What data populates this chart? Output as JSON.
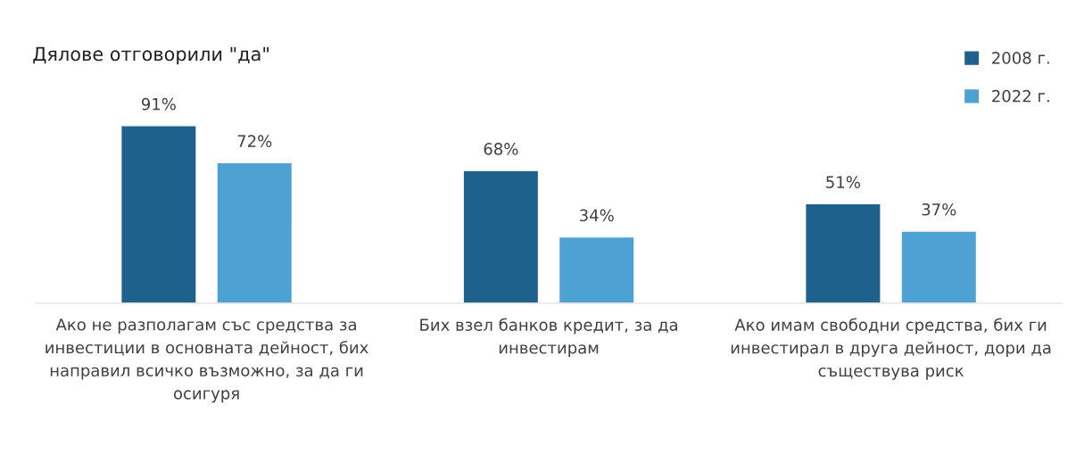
{
  "chart_data": {
    "type": "bar",
    "title": "Дялове отговорили \"да\"",
    "categories": [
      "Ако не разполагам със средства за инвестиции в основната дейност, бих направил всичко възможно, за да ги осигуря",
      "Бих взел банков кредит, за да инвестирам",
      "Ако имам свободни средства, бих ги инвестирал в друга дейност, дори да съществува риск"
    ],
    "series": [
      {
        "name": "2008 г.",
        "color": "#1f618d",
        "values": [
          91,
          68,
          51
        ],
        "value_labels": [
          "91%",
          "68%",
          "51%"
        ]
      },
      {
        "name": "2022 г.",
        "color": "#4ea1d3",
        "values": [
          72,
          34,
          37
        ],
        "value_labels": [
          "72%",
          "34%",
          "37%"
        ]
      }
    ],
    "tick_labels": "x",
    "grid": false,
    "legend": "top right"
  }
}
